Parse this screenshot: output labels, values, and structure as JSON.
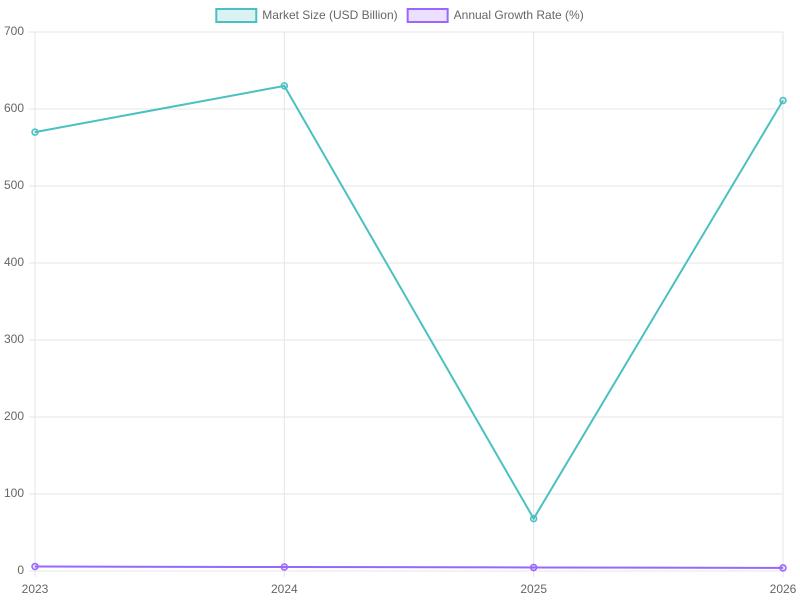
{
  "chart_data": {
    "type": "line",
    "categories": [
      "2023",
      "2024",
      "2025",
      "2026"
    ],
    "series": [
      {
        "name": "Market Size (USD Billion)",
        "color": "#4bc0c0",
        "values": [
          570,
          630,
          68,
          611
        ]
      },
      {
        "name": "Annual Growth Rate (%)",
        "color": "#9966ff",
        "values": [
          5.8,
          5.2,
          4.6,
          4.0
        ]
      }
    ],
    "ylim": [
      0,
      700
    ],
    "yticks": [
      0,
      100,
      200,
      300,
      400,
      500,
      600,
      700
    ],
    "grid": true,
    "legend": "top"
  }
}
